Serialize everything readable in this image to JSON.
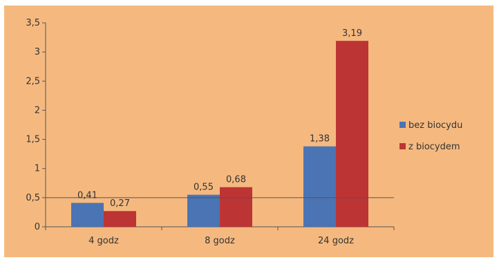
{
  "chart_data": {
    "type": "bar",
    "categories": [
      "4 godz",
      "8 godz",
      "24 godz"
    ],
    "series": [
      {
        "name": "bez biocydu",
        "values": [
          0.41,
          0.55,
          1.38
        ],
        "labels": [
          "0,41",
          "0,55",
          "1,38"
        ],
        "color": "#4a74b3"
      },
      {
        "name": "z biocydem",
        "values": [
          0.27,
          0.68,
          3.19
        ],
        "labels": [
          "0,27",
          "0,68",
          "3,19"
        ],
        "color": "#bd3434"
      }
    ],
    "ylim": [
      0,
      3.5
    ],
    "yticks": [
      0,
      0.5,
      1,
      1.5,
      2,
      2.5,
      3,
      3.5
    ],
    "ytick_labels": [
      "0",
      "0,5",
      "1",
      "1,5",
      "2",
      "2,5",
      "3",
      "3,5"
    ],
    "reference_line": 0.5,
    "grid": false,
    "legend_position": "right",
    "background": "#f5b97f",
    "title": "",
    "xlabel": "",
    "ylabel": ""
  }
}
